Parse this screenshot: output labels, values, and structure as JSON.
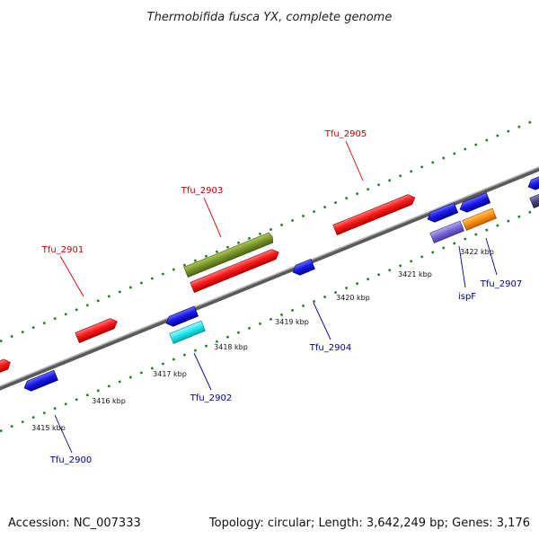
{
  "title": "Thermobifida fusca YX, complete genome",
  "footer": {
    "accession": "Accession: NC_007333",
    "summary": "Topology: circular; Length: 3,642,249 bp; Genes: 3,176"
  },
  "colors": {
    "backbone": "#8c8c8c",
    "tick": "#1e7a1e",
    "forward_label": "#cc0000",
    "reverse_label": "#000099"
  },
  "gene_labels": {
    "tfu2901": "Tfu_2901",
    "tfu2903": "Tfu_2903",
    "tfu2905": "Tfu_2905",
    "tfu2900": "Tfu_2900",
    "tfu2902": "Tfu_2902",
    "tfu2904": "Tfu_2904",
    "ispF": "ispF",
    "tfu2907": "Tfu_2907"
  },
  "kbp_labels": {
    "k3415": "3415 kbp",
    "k3416": "3416 kbp",
    "k3417": "3417 kbp",
    "k3418": "3418 kbp",
    "k3419": "3419 kbp",
    "k3420": "3420 kbp",
    "k3421": "3421 kbp",
    "k3422": "3422 kbp"
  }
}
